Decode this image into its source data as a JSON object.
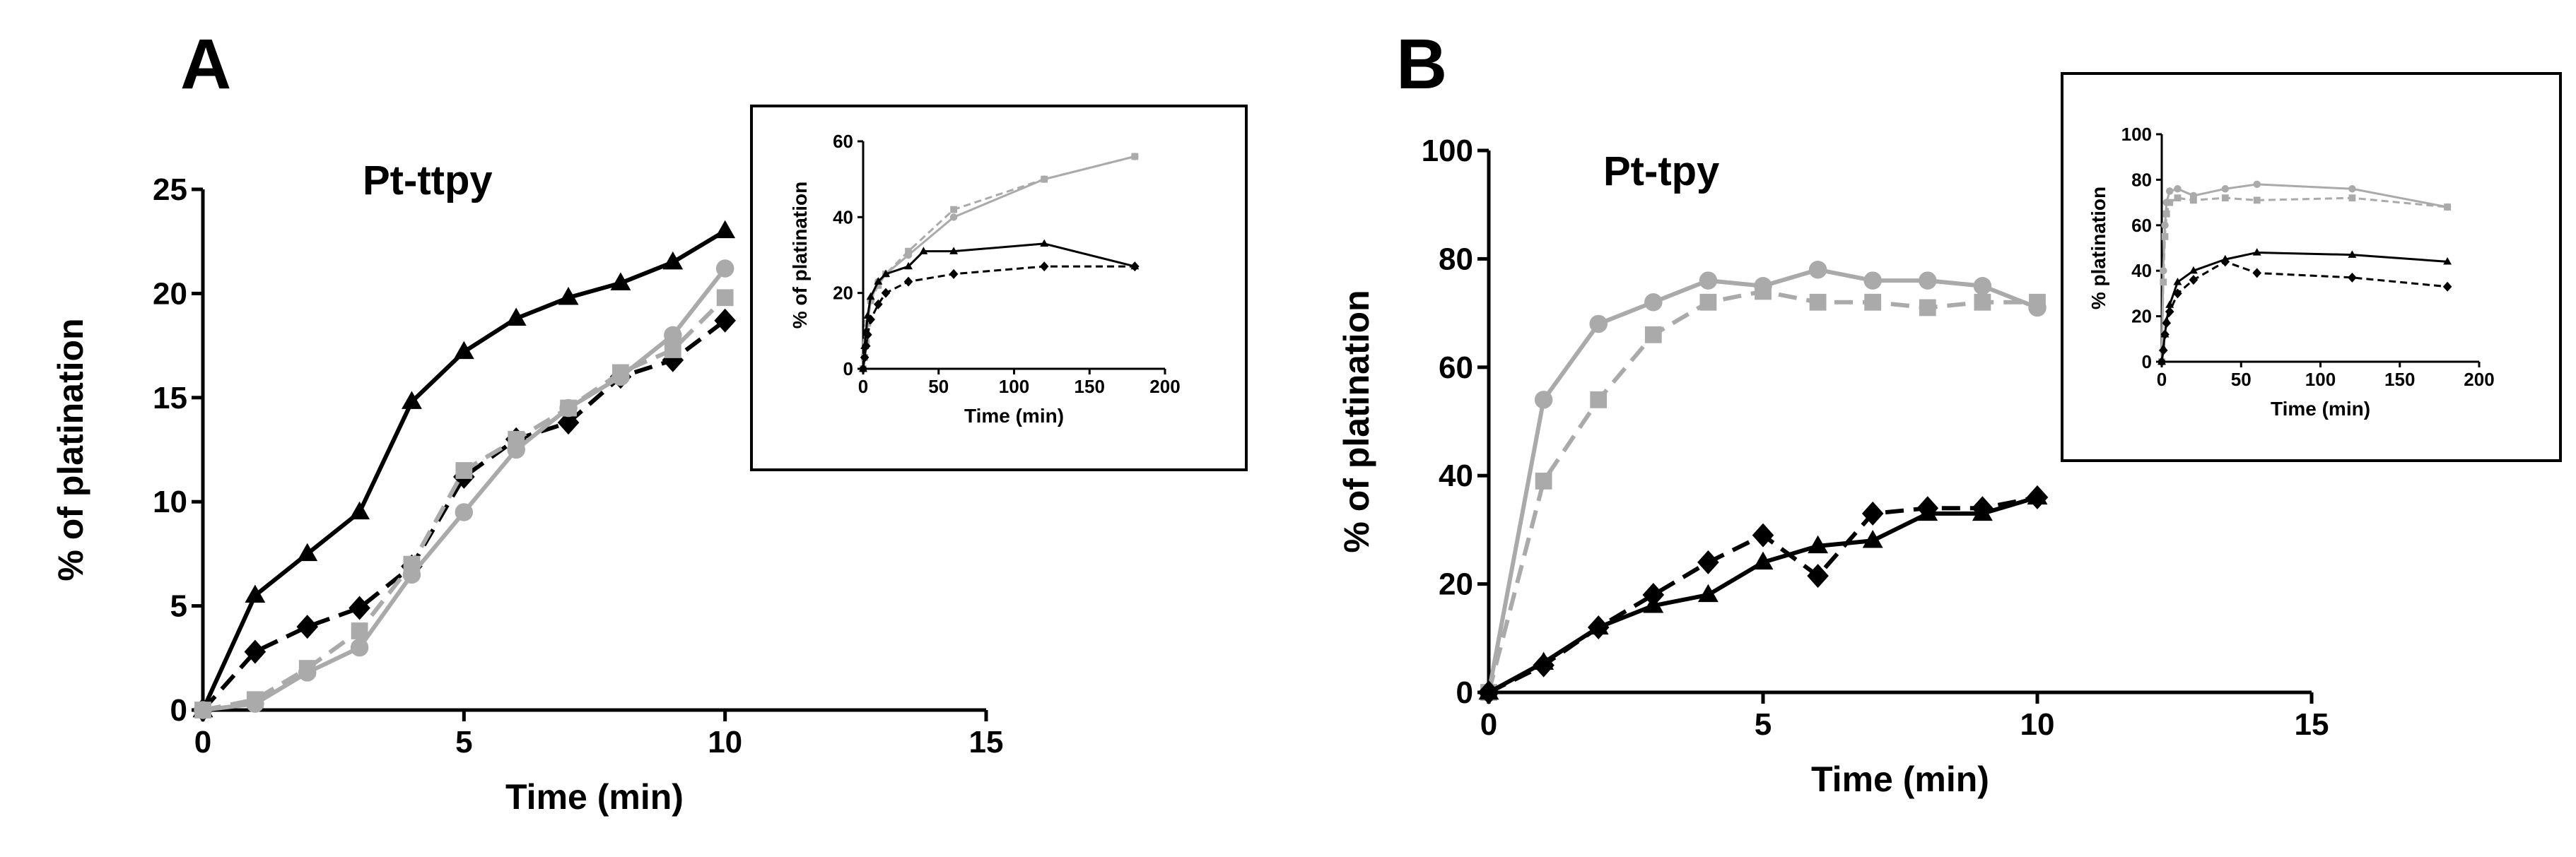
{
  "chart_data": [
    {
      "panel": "A",
      "type": "line",
      "title": "Pt-ttpy",
      "xlabel": "Time (min)",
      "ylabel": "% of platination",
      "xlim": [
        0,
        15
      ],
      "ylim": [
        0,
        25
      ],
      "xticks": [
        "0",
        "5",
        "10",
        "15"
      ],
      "yticks": [
        "0",
        "5",
        "10",
        "15",
        "20",
        "25"
      ],
      "series": [
        {
          "name": "black-triangle-solid",
          "color": "#000000",
          "marker": "triangle",
          "dash": "solid",
          "x": [
            0,
            1,
            2,
            3,
            4,
            5,
            6,
            7,
            8,
            9,
            10
          ],
          "y": [
            0,
            5.5,
            7.5,
            9.5,
            14.8,
            17.2,
            18.8,
            19.8,
            20.5,
            21.5,
            23
          ]
        },
        {
          "name": "black-diamond-dashed",
          "color": "#000000",
          "marker": "diamond",
          "dash": "dashed",
          "x": [
            0,
            1,
            2,
            3,
            4,
            5,
            6,
            7,
            8,
            9,
            10
          ],
          "y": [
            0,
            2.8,
            4,
            4.9,
            6.9,
            11.2,
            13,
            13.8,
            16,
            16.8,
            18.7
          ]
        },
        {
          "name": "gray-circle-solid",
          "color": "#aaaaaa",
          "marker": "circle",
          "dash": "solid",
          "x": [
            0,
            1,
            2,
            3,
            4,
            5,
            6,
            7,
            8,
            9,
            10
          ],
          "y": [
            0,
            0.3,
            1.8,
            3,
            6.5,
            9.5,
            12.5,
            14.5,
            16,
            18,
            21.2
          ]
        },
        {
          "name": "gray-square-dashed",
          "color": "#aaaaaa",
          "marker": "square",
          "dash": "dashed",
          "x": [
            0,
            1,
            2,
            3,
            4,
            5,
            6,
            7,
            8,
            9,
            10
          ],
          "y": [
            0,
            0.5,
            2,
            3.8,
            7,
            11.5,
            13,
            14.5,
            16.2,
            17.3,
            19.8
          ]
        }
      ],
      "inset": {
        "xlabel": "Time (min)",
        "ylabel": "% of platination",
        "xlim": [
          0,
          200
        ],
        "ylim": [
          0,
          60
        ],
        "xticks": [
          "0",
          "50",
          "100",
          "150",
          "200"
        ],
        "yticks": [
          "0",
          "20",
          "40",
          "60"
        ],
        "series": [
          {
            "name": "gray-circle-solid",
            "color": "#aaaaaa",
            "marker": "circle",
            "dash": "solid",
            "x": [
              0,
              1,
              2,
              3,
              5,
              10,
              15,
              30,
              60,
              120,
              180
            ],
            "y": [
              0,
              3,
              7,
              12,
              18,
              23,
              25,
              30,
              40,
              50,
              56
            ]
          },
          {
            "name": "gray-square-dashed",
            "color": "#aaaaaa",
            "marker": "square",
            "dash": "dashed",
            "x": [
              0,
              1,
              2,
              3,
              5,
              10,
              15,
              30,
              60,
              120,
              180
            ],
            "y": [
              0,
              3,
              7,
              12,
              18,
              22,
              25,
              31,
              42,
              50,
              56
            ]
          },
          {
            "name": "black-triangle-solid",
            "color": "#000000",
            "marker": "triangle",
            "dash": "solid",
            "x": [
              0,
              1,
              2,
              3,
              5,
              10,
              15,
              30,
              40,
              60,
              120,
              180
            ],
            "y": [
              0,
              6,
              10,
              14,
              19,
              23,
              25,
              27,
              31,
              31,
              33,
              27
            ]
          },
          {
            "name": "black-diamond-dashed",
            "color": "#000000",
            "marker": "diamond",
            "dash": "dashed",
            "x": [
              0,
              1,
              2,
              3,
              5,
              10,
              15,
              30,
              60,
              120,
              180
            ],
            "y": [
              0,
              3,
              6,
              9,
              13,
              17,
              20,
              23,
              25,
              27,
              27
            ]
          }
        ]
      }
    },
    {
      "panel": "B",
      "type": "line",
      "title": "Pt-tpy",
      "xlabel": "Time (min)",
      "ylabel": "% of platination",
      "xlim": [
        0,
        15
      ],
      "ylim": [
        0,
        100
      ],
      "xticks": [
        "0",
        "5",
        "10",
        "15"
      ],
      "yticks": [
        "0",
        "20",
        "40",
        "60",
        "80",
        "100"
      ],
      "series": [
        {
          "name": "gray-circle-solid",
          "color": "#aaaaaa",
          "marker": "circle",
          "dash": "solid",
          "x": [
            0,
            1,
            2,
            3,
            4,
            5,
            6,
            7,
            8,
            9,
            10
          ],
          "y": [
            0,
            54,
            68,
            72,
            76,
            75,
            78,
            76,
            76,
            75,
            71
          ]
        },
        {
          "name": "gray-square-dashed",
          "color": "#aaaaaa",
          "marker": "square",
          "dash": "dashed",
          "x": [
            0,
            1,
            2,
            3,
            4,
            5,
            6,
            7,
            8,
            9,
            10
          ],
          "y": [
            0,
            39,
            54,
            66,
            72,
            74,
            72,
            72,
            71,
            72,
            72
          ]
        },
        {
          "name": "black-triangle-solid",
          "color": "#000000",
          "marker": "triangle",
          "dash": "solid",
          "x": [
            0,
            1,
            2,
            3,
            4,
            5,
            6,
            7,
            8,
            9,
            10
          ],
          "y": [
            0,
            5.5,
            12,
            16,
            18,
            24,
            27,
            28,
            33,
            33,
            36
          ]
        },
        {
          "name": "black-diamond-dashed",
          "color": "#000000",
          "marker": "diamond",
          "dash": "dashed",
          "x": [
            0,
            1,
            2,
            3,
            4,
            5,
            6,
            7,
            8,
            9,
            10
          ],
          "y": [
            0,
            5,
            12,
            18,
            24,
            29,
            21.5,
            33,
            34,
            34,
            36
          ]
        }
      ],
      "inset": {
        "xlabel": "Time (min)",
        "ylabel": "% platination",
        "xlim": [
          0,
          200
        ],
        "ylim": [
          0,
          100
        ],
        "xticks": [
          "0",
          "50",
          "100",
          "150",
          "200"
        ],
        "yticks": [
          "0",
          "20",
          "40",
          "60",
          "80",
          "100"
        ],
        "series": [
          {
            "name": "gray-circle-solid",
            "color": "#aaaaaa",
            "marker": "circle",
            "dash": "solid",
            "x": [
              0,
              1,
              2,
              3,
              5,
              10,
              20,
              40,
              60,
              120,
              180
            ],
            "y": [
              0,
              40,
              60,
              70,
              75,
              76,
              73,
              76,
              78,
              76,
              68
            ]
          },
          {
            "name": "gray-square-dashed",
            "color": "#aaaaaa",
            "marker": "square",
            "dash": "dashed",
            "x": [
              0,
              1,
              2,
              3,
              5,
              10,
              20,
              40,
              60,
              120,
              180
            ],
            "y": [
              0,
              35,
              55,
              65,
              70,
              72,
              71,
              72,
              71,
              72,
              68
            ]
          },
          {
            "name": "black-triangle-solid",
            "color": "#000000",
            "marker": "triangle",
            "dash": "solid",
            "x": [
              0,
              1,
              2,
              3,
              5,
              10,
              20,
              40,
              60,
              120,
              180
            ],
            "y": [
              0,
              6,
              12,
              18,
              25,
              35,
              40,
              45,
              48,
              47,
              44
            ]
          },
          {
            "name": "black-diamond-dashed",
            "color": "#000000",
            "marker": "diamond",
            "dash": "dashed",
            "x": [
              0,
              1,
              2,
              3,
              5,
              10,
              20,
              40,
              60,
              120,
              180
            ],
            "y": [
              0,
              5,
              12,
              17,
              22,
              30,
              36,
              44,
              39,
              37,
              33
            ]
          }
        ]
      }
    }
  ]
}
